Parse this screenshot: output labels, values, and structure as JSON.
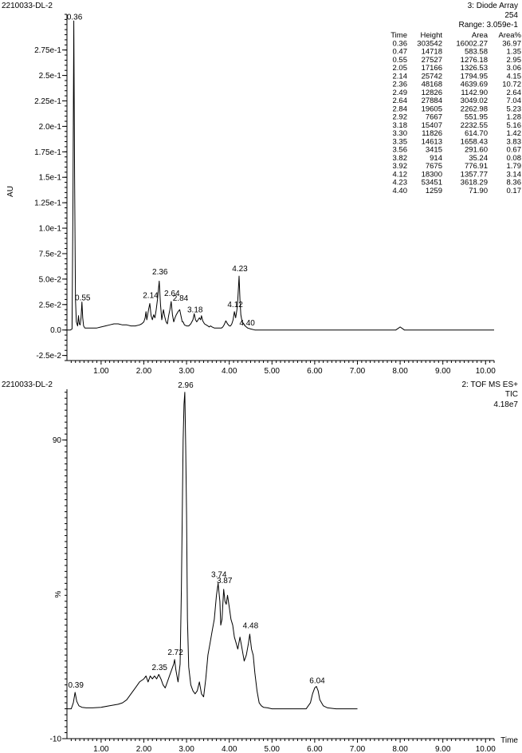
{
  "chart_data": [
    {
      "type": "line",
      "sample": "2210033-DL-2",
      "header": [
        "3: Diode Array",
        "254",
        "Range: 3.059e-1"
      ],
      "ylabel": "AU",
      "xlim": [
        0.2,
        10.2
      ],
      "ylim": [
        -0.03,
        0.31
      ],
      "x_ticks": [
        "1.00",
        "2.00",
        "3.00",
        "4.00",
        "5.00",
        "6.00",
        "7.00",
        "8.00",
        "9.00",
        "10.00"
      ],
      "y_ticks": [
        {
          "value": -0.025,
          "label": "-2.5e-2"
        },
        {
          "value": 0.0,
          "label": "0.0"
        },
        {
          "value": 0.025,
          "label": "2.5e-2"
        },
        {
          "value": 0.05,
          "label": "5.0e-2"
        },
        {
          "value": 0.075,
          "label": "7.5e-2"
        },
        {
          "value": 0.1,
          "label": "1.0e-1"
        },
        {
          "value": 0.125,
          "label": "1.25e-1"
        },
        {
          "value": 0.15,
          "label": "1.5e-1"
        },
        {
          "value": 0.175,
          "label": "1.75e-1"
        },
        {
          "value": 0.2,
          "label": "2.0e-1"
        },
        {
          "value": 0.225,
          "label": "2.25e-1"
        },
        {
          "value": 0.25,
          "label": "2.5e-1"
        },
        {
          "value": 0.275,
          "label": "2.75e-1"
        }
      ],
      "peak_labels": [
        {
          "x": 0.36,
          "y": 0.3035,
          "text": "0.36"
        },
        {
          "x": 0.55,
          "y": 0.0275,
          "text": "0.55"
        },
        {
          "x": 2.14,
          "y": 0.03,
          "text": "2.14"
        },
        {
          "x": 2.36,
          "y": 0.053,
          "text": "2.36"
        },
        {
          "x": 2.64,
          "y": 0.032,
          "text": "2.64"
        },
        {
          "x": 2.84,
          "y": 0.027,
          "text": "2.84"
        },
        {
          "x": 3.18,
          "y": 0.016,
          "text": "3.18"
        },
        {
          "x": 4.12,
          "y": 0.021,
          "text": "4.12"
        },
        {
          "x": 4.23,
          "y": 0.056,
          "text": "4.23"
        },
        {
          "x": 4.4,
          "y": 0.003,
          "text": "4.40"
        }
      ],
      "table": {
        "columns": [
          "Time",
          "Height",
          "Area",
          "Area%"
        ],
        "rows": [
          [
            "0.36",
            "303542",
            "16002.27",
            "36.97"
          ],
          [
            "0.47",
            "14718",
            "583.58",
            "1.35"
          ],
          [
            "0.55",
            "27527",
            "1276.18",
            "2.95"
          ],
          [
            "2.05",
            "17166",
            "1326.53",
            "3.06"
          ],
          [
            "2.14",
            "25742",
            "1794.95",
            "4.15"
          ],
          [
            "2.36",
            "48168",
            "4639.69",
            "10.72"
          ],
          [
            "2.49",
            "12826",
            "1142.90",
            "2.64"
          ],
          [
            "2.64",
            "27884",
            "3049.02",
            "7.04"
          ],
          [
            "2.84",
            "19605",
            "2262.98",
            "5.23"
          ],
          [
            "2.92",
            "7667",
            "551.95",
            "1.28"
          ],
          [
            "3.18",
            "15407",
            "2232.55",
            "5.16"
          ],
          [
            "3.30",
            "11826",
            "614.70",
            "1.42"
          ],
          [
            "3.35",
            "14613",
            "1658.43",
            "3.83"
          ],
          [
            "3.56",
            "3415",
            "291.60",
            "0.67"
          ],
          [
            "3.82",
            "914",
            "35.24",
            "0.08"
          ],
          [
            "3.92",
            "7675",
            "776.91",
            "1.79"
          ],
          [
            "4.12",
            "18300",
            "1357.77",
            "3.14"
          ],
          [
            "4.23",
            "53451",
            "3618.29",
            "8.36"
          ],
          [
            "4.40",
            "1259",
            "71.90",
            "0.17"
          ]
        ]
      },
      "series": [
        {
          "x": [
            0.2,
            0.28,
            0.32,
            0.34,
            0.36,
            0.38,
            0.4,
            0.42,
            0.45,
            0.47,
            0.49,
            0.51,
            0.53,
            0.55,
            0.57,
            0.59,
            0.62,
            0.65,
            0.7,
            0.8,
            0.9,
            1.0,
            1.1,
            1.2,
            1.3,
            1.4,
            1.5,
            1.6,
            1.7,
            1.8,
            1.9,
            1.95,
            2.0,
            2.03,
            2.05,
            2.07,
            2.09,
            2.11,
            2.14,
            2.17,
            2.2,
            2.23,
            2.26,
            2.29,
            2.32,
            2.36,
            2.39,
            2.42,
            2.46,
            2.49,
            2.52,
            2.55,
            2.58,
            2.61,
            2.64,
            2.67,
            2.7,
            2.73,
            2.76,
            2.8,
            2.84,
            2.88,
            2.9,
            2.92,
            2.95,
            3.0,
            3.05,
            3.1,
            3.15,
            3.18,
            3.21,
            3.24,
            3.27,
            3.3,
            3.33,
            3.35,
            3.38,
            3.42,
            3.46,
            3.5,
            3.53,
            3.56,
            3.6,
            3.65,
            3.7,
            3.75,
            3.8,
            3.82,
            3.85,
            3.88,
            3.92,
            3.96,
            4.0,
            4.03,
            4.06,
            4.09,
            4.12,
            4.15,
            4.18,
            4.2,
            4.23,
            4.25,
            4.27,
            4.3,
            4.34,
            4.37,
            4.4,
            4.43,
            4.5,
            4.6,
            4.8,
            5.0,
            5.5,
            6.0,
            6.5,
            7.0,
            7.5,
            7.9,
            7.95,
            8.0,
            8.05,
            8.1,
            8.2,
            8.5,
            9.0,
            9.5,
            10.0,
            10.2
          ],
          "y": [
            0,
            0,
            0.001,
            0.12,
            0.3035,
            0.15,
            0.03,
            0.008,
            0.004,
            0.014,
            0.006,
            0.005,
            0.012,
            0.0275,
            0.012,
            0.004,
            0.002,
            0.002,
            0.002,
            0.002,
            0.002,
            0.003,
            0.004,
            0.005,
            0.006,
            0.006,
            0.005,
            0.005,
            0.004,
            0.004,
            0.005,
            0.006,
            0.008,
            0.012,
            0.018,
            0.01,
            0.015,
            0.02,
            0.026,
            0.014,
            0.01,
            0.015,
            0.012,
            0.02,
            0.03,
            0.048,
            0.025,
            0.01,
            0.02,
            0.013,
            0.008,
            0.006,
            0.014,
            0.02,
            0.028,
            0.015,
            0.008,
            0.012,
            0.015,
            0.018,
            0.02,
            0.012,
            0.008,
            0.008,
            0.005,
            0.004,
            0.004,
            0.006,
            0.01,
            0.016,
            0.01,
            0.008,
            0.01,
            0.012,
            0.01,
            0.014,
            0.009,
            0.006,
            0.005,
            0.004,
            0.003,
            0.004,
            0.003,
            0.002,
            0.002,
            0.002,
            0.002,
            0.002,
            0.003,
            0.005,
            0.009,
            0.006,
            0.004,
            0.004,
            0.006,
            0.01,
            0.018,
            0.012,
            0.02,
            0.03,
            0.053,
            0.03,
            0.015,
            0.008,
            0.006,
            0.004,
            0.003,
            0.002,
            0.001,
            0,
            0,
            0,
            0,
            0,
            0,
            0,
            0,
            0,
            0.0015,
            0.003,
            0.0015,
            0,
            0,
            0,
            0,
            0,
            0,
            0
          ]
        }
      ]
    },
    {
      "type": "line",
      "sample": "2210033-DL-2",
      "header": [
        "2: TOF MS ES+",
        "TIC",
        "4.18e7"
      ],
      "ylabel": "%",
      "xlabel": "Time",
      "xlim": [
        0.2,
        10.2
      ],
      "ylim": [
        -10,
        107
      ],
      "x_ticks": [
        "1.00",
        "2.00",
        "3.00",
        "4.00",
        "5.00",
        "6.00",
        "7.00",
        "8.00",
        "9.00",
        "10.00"
      ],
      "y_ticks": [
        {
          "value": 90,
          "label": "90"
        },
        {
          "value": -10,
          "label": "-10"
        }
      ],
      "peak_labels": [
        {
          "x": 0.39,
          "y": 6.5,
          "text": "0.39"
        },
        {
          "x": 2.35,
          "y": 12.5,
          "text": "2.35"
        },
        {
          "x": 2.72,
          "y": 17.5,
          "text": "2.72"
        },
        {
          "x": 2.96,
          "y": 107,
          "text": "2.96"
        },
        {
          "x": 3.74,
          "y": 43.5,
          "text": "3.74"
        },
        {
          "x": 3.87,
          "y": 41.5,
          "text": "3.87"
        },
        {
          "x": 4.48,
          "y": 26.5,
          "text": "4.48"
        },
        {
          "x": 6.04,
          "y": 8,
          "text": "6.04"
        }
      ],
      "series": [
        {
          "x": [
            0.2,
            0.3,
            0.35,
            0.39,
            0.43,
            0.48,
            0.55,
            0.65,
            0.8,
            1.0,
            1.2,
            1.4,
            1.5,
            1.6,
            1.7,
            1.8,
            1.9,
            2.0,
            2.05,
            2.1,
            2.15,
            2.2,
            2.25,
            2.3,
            2.35,
            2.4,
            2.45,
            2.5,
            2.55,
            2.6,
            2.65,
            2.7,
            2.72,
            2.75,
            2.8,
            2.85,
            2.88,
            2.9,
            2.92,
            2.94,
            2.96,
            2.98,
            3.0,
            3.02,
            3.05,
            3.1,
            3.15,
            3.2,
            3.25,
            3.3,
            3.35,
            3.4,
            3.45,
            3.5,
            3.55,
            3.6,
            3.65,
            3.7,
            3.74,
            3.78,
            3.8,
            3.83,
            3.85,
            3.87,
            3.9,
            3.93,
            3.96,
            4.0,
            4.04,
            4.08,
            4.12,
            4.16,
            4.2,
            4.25,
            4.3,
            4.35,
            4.4,
            4.45,
            4.48,
            4.52,
            4.56,
            4.6,
            4.65,
            4.7,
            4.75,
            4.8,
            4.9,
            5.0,
            5.5,
            5.8,
            5.9,
            5.95,
            6.0,
            6.04,
            6.08,
            6.12,
            6.2,
            6.3,
            6.5,
            7.0
          ],
          "y": [
            0,
            0,
            2,
            5.5,
            2.5,
            1,
            0.5,
            0.3,
            0.3,
            0.5,
            1,
            1.5,
            2,
            3,
            5,
            7,
            9,
            10,
            11,
            9,
            11,
            10,
            11,
            10,
            11.5,
            10,
            8,
            7,
            9,
            11,
            13,
            15,
            16.5,
            13,
            9,
            15,
            40,
            65,
            90,
            102,
            106,
            88,
            65,
            30,
            14,
            8,
            6,
            5,
            6,
            9,
            5,
            4,
            10,
            18,
            22,
            26,
            30,
            38,
            42,
            36,
            28,
            30,
            35,
            40,
            36,
            35,
            38,
            34,
            30,
            28,
            24,
            22,
            20,
            24,
            20,
            16,
            18,
            22,
            25,
            20,
            18,
            12,
            6,
            2,
            1,
            0.5,
            0.3,
            0,
            0,
            0,
            2,
            5,
            7,
            7.5,
            6,
            3,
            1,
            0.3,
            0,
            0
          ]
        }
      ]
    }
  ]
}
